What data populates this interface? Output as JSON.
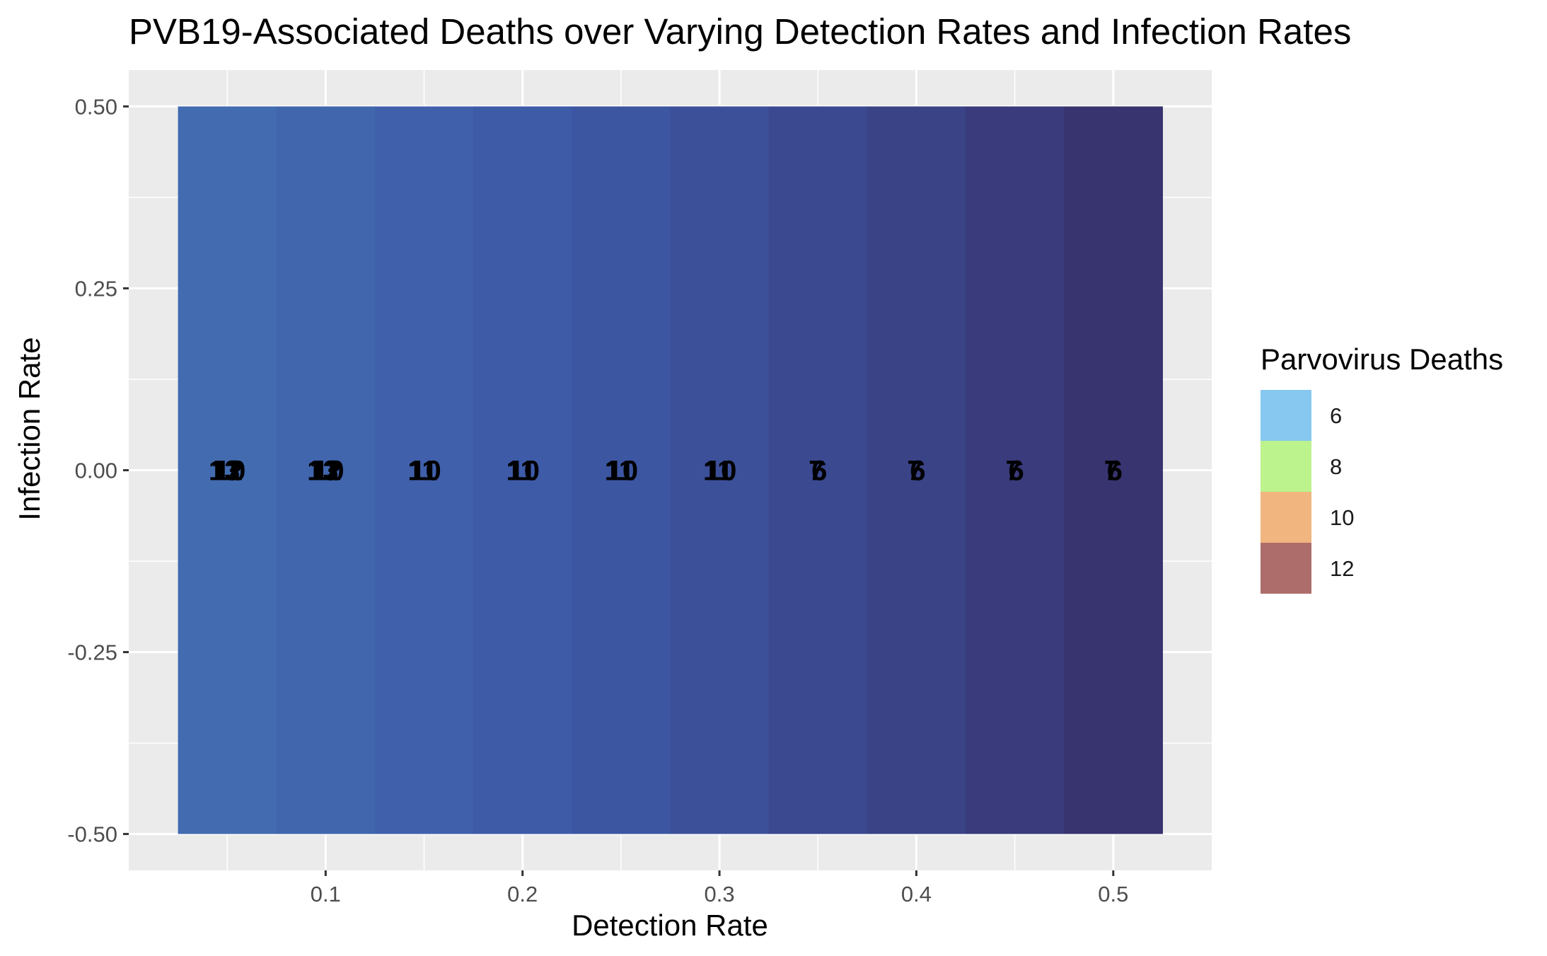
{
  "chart_data": {
    "type": "heatmap",
    "title": "PVB19-Associated Deaths over Varying Detection Rates and Infection Rates",
    "xlabel": "Detection Rate",
    "ylabel": "Infection Rate",
    "x_ticks": [
      "0.1",
      "0.2",
      "0.3",
      "0.4",
      "0.5"
    ],
    "x_tick_values": [
      0.1,
      0.2,
      0.3,
      0.4,
      0.5
    ],
    "y_ticks": [
      "0.50",
      "0.25",
      "0.00",
      "-0.25",
      "-0.50"
    ],
    "y_tick_values": [
      0.5,
      0.25,
      0.0,
      -0.25,
      -0.5
    ],
    "xlim": [
      0.0,
      0.55
    ],
    "ylim": [
      -0.55,
      0.55
    ],
    "grid": true,
    "panel_background": "#ebebeb",
    "tile_width": 0.05,
    "tiles": [
      {
        "x": 0.05,
        "y": 0,
        "fill": "#436cb0",
        "labels": [
          "13",
          "12",
          "10"
        ]
      },
      {
        "x": 0.1,
        "y": 0,
        "fill": "#4166ae",
        "labels": [
          "13",
          "12",
          "10"
        ]
      },
      {
        "x": 0.15,
        "y": 0,
        "fill": "#4060ab",
        "labels": [
          "11",
          "10"
        ]
      },
      {
        "x": 0.2,
        "y": 0,
        "fill": "#3e5ba8",
        "labels": [
          "11",
          "10"
        ]
      },
      {
        "x": 0.25,
        "y": 0,
        "fill": "#3d56a2",
        "labels": [
          "11",
          "10"
        ]
      },
      {
        "x": 0.3,
        "y": 0,
        "fill": "#3c509a",
        "labels": [
          "11",
          "10"
        ]
      },
      {
        "x": 0.35,
        "y": 0,
        "fill": "#3b4990",
        "labels": [
          "7",
          "6"
        ]
      },
      {
        "x": 0.4,
        "y": 0,
        "fill": "#3a4386",
        "labels": [
          "7",
          "6"
        ]
      },
      {
        "x": 0.45,
        "y": 0,
        "fill": "#3a3b7c",
        "labels": [
          "7",
          "6"
        ]
      },
      {
        "x": 0.5,
        "y": 0,
        "fill": "#383470",
        "labels": [
          "7",
          "6"
        ]
      }
    ],
    "legend": {
      "title": "Parvovirus Deaths",
      "position": "right",
      "items": [
        {
          "label": "6",
          "color": "#87c8f0"
        },
        {
          "label": "8",
          "color": "#bcf38c"
        },
        {
          "label": "10",
          "color": "#f1b57f"
        },
        {
          "label": "12",
          "color": "#ad6d6a"
        }
      ]
    }
  }
}
